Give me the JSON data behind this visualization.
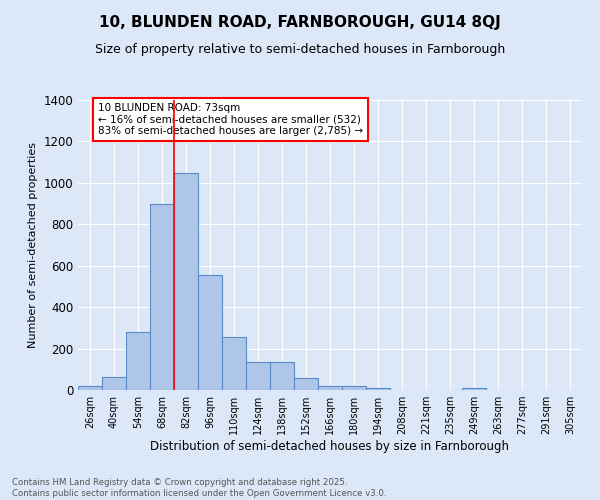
{
  "title": "10, BLUNDEN ROAD, FARNBOROUGH, GU14 8QJ",
  "subtitle": "Size of property relative to semi-detached houses in Farnborough",
  "xlabel": "Distribution of semi-detached houses by size in Farnborough",
  "ylabel": "Number of semi-detached properties",
  "categories": [
    "26sqm",
    "40sqm",
    "54sqm",
    "68sqm",
    "82sqm",
    "96sqm",
    "110sqm",
    "124sqm",
    "138sqm",
    "152sqm",
    "166sqm",
    "180sqm",
    "194sqm",
    "208sqm",
    "221sqm",
    "235sqm",
    "249sqm",
    "263sqm",
    "277sqm",
    "291sqm",
    "305sqm"
  ],
  "values": [
    18,
    65,
    280,
    900,
    1050,
    555,
    255,
    135,
    135,
    60,
    20,
    20,
    12,
    0,
    0,
    0,
    12,
    0,
    0,
    0,
    0
  ],
  "bar_color": "#aec6e8",
  "bar_edge_color": "#5b8cc8",
  "background_color": "#dce8f8",
  "grid_color": "#ffffff",
  "red_line_x": 3.5,
  "annotation_text": "10 BLUNDEN ROAD: 73sqm\n← 16% of semi-detached houses are smaller (532)\n83% of semi-detached houses are larger (2,785) →",
  "footer_line1": "Contains HM Land Registry data © Crown copyright and database right 2025.",
  "footer_line2": "Contains public sector information licensed under the Open Government Licence v3.0.",
  "ylim": [
    0,
    1400
  ],
  "yticks": [
    0,
    200,
    400,
    600,
    800,
    1000,
    1200,
    1400
  ]
}
